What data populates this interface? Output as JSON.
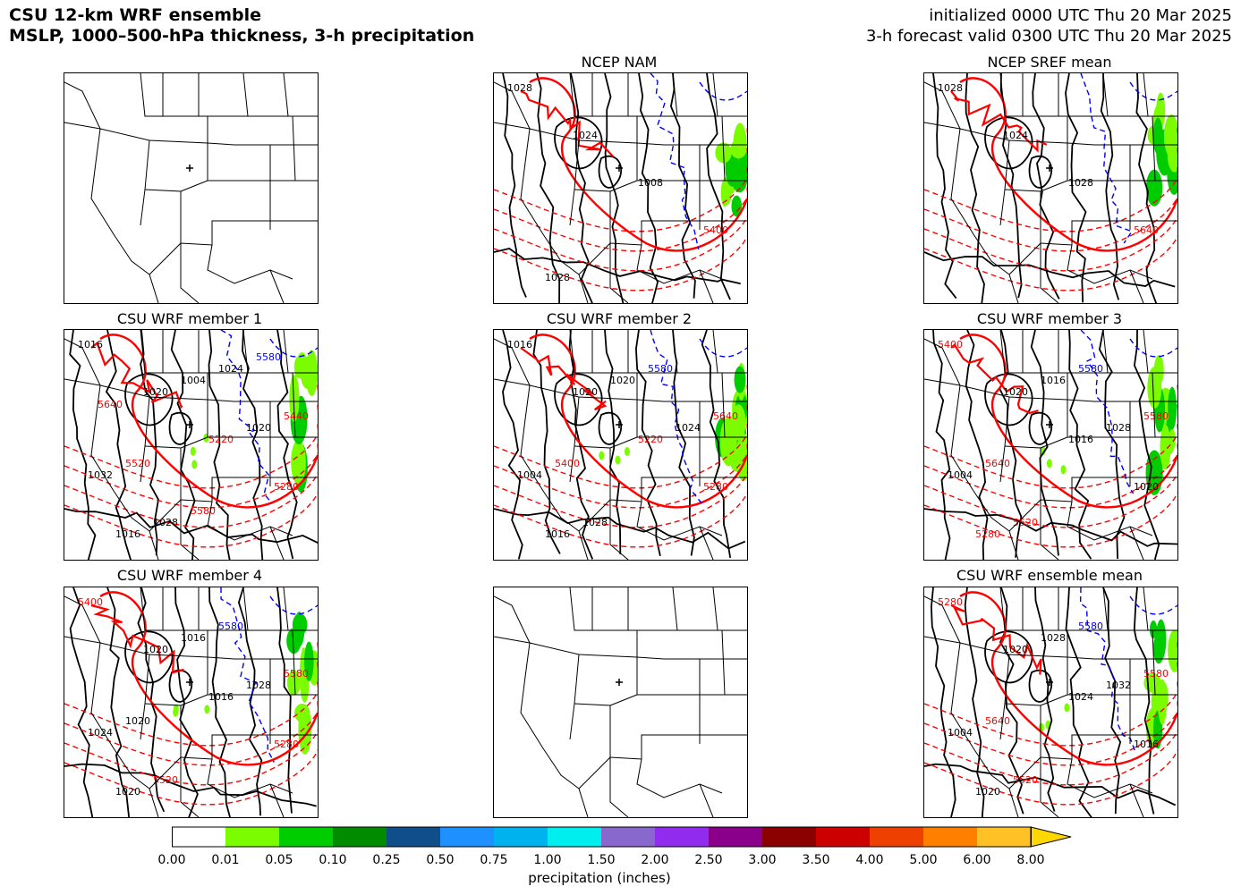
{
  "header": {
    "title_line1": "CSU 12-km WRF ensemble",
    "title_line2": "MSLP, 1000–500-hPa thickness, 3-h precipitation",
    "init_line": "initialized 0000 UTC Thu 20 Mar 2025",
    "valid_line": "3-h forecast valid 0300 UTC Thu 20 Mar 2025"
  },
  "panels": [
    {
      "title": "",
      "type": "map-only",
      "labels": []
    },
    {
      "title": "NCEP NAM",
      "type": "forecast",
      "labels": [
        "1028",
        "1024",
        "1008",
        "5400",
        "1028"
      ]
    },
    {
      "title": "NCEP SREF mean",
      "type": "forecast",
      "labels": [
        "1028",
        "1024",
        "1028",
        "5640"
      ]
    },
    {
      "title": "CSU WRF member 1",
      "type": "forecast",
      "labels": [
        "1016",
        "1020",
        "5220",
        "5280",
        "1016",
        "1004",
        "1020",
        "1032",
        "1028",
        "1024",
        "5440",
        "5520",
        "5580",
        "5580",
        "5640"
      ]
    },
    {
      "title": "CSU WRF member 2",
      "type": "forecast",
      "labels": [
        "1016",
        "1020",
        "5220",
        "5280",
        "1016",
        "1020",
        "1024",
        "1004",
        "1028",
        "5580",
        "5640",
        "5400"
      ]
    },
    {
      "title": "CSU WRF member 3",
      "type": "forecast",
      "labels": [
        "5400",
        "1020",
        "1016",
        "1020",
        "5280",
        "1016",
        "1028",
        "1004",
        "5520",
        "5580",
        "5580",
        "5640"
      ]
    },
    {
      "title": "CSU WRF member 4",
      "type": "forecast",
      "labels": [
        "5400",
        "1020",
        "1016",
        "5280",
        "1020",
        "1016",
        "1028",
        "1024",
        "5520",
        "5580",
        "5580",
        "1020"
      ]
    },
    {
      "title": "",
      "type": "map-only",
      "labels": []
    },
    {
      "title": "CSU WRF ensemble mean",
      "type": "forecast",
      "labels": [
        "5280",
        "1020",
        "1024",
        "1016",
        "1020",
        "1028",
        "1032",
        "1004",
        "5520",
        "5580",
        "5580",
        "5640"
      ]
    }
  ],
  "colorbar": {
    "label": "precipitation (inches)",
    "ticks": [
      "0.00",
      "0.01",
      "0.05",
      "0.10",
      "0.25",
      "0.50",
      "0.75",
      "1.00",
      "1.50",
      "2.00",
      "2.50",
      "3.00",
      "3.50",
      "4.00",
      "5.00",
      "6.00",
      "8.00"
    ],
    "colors": [
      "#ffffff",
      "#7cfc00",
      "#00cd00",
      "#008b00",
      "#104e8b",
      "#1e90ff",
      "#00b2ee",
      "#00eeee",
      "#8968cd",
      "#912cee",
      "#8b008b",
      "#8b0000",
      "#cd0000",
      "#ee4000",
      "#ff7f00",
      "#ffc125"
    ],
    "extend_color": "#ffd700"
  },
  "colors": {
    "isobar": "#000000",
    "thickness_warm": "#ff0000",
    "thickness_cold": "#0000ff",
    "precip_light": "#7cfc00",
    "precip_mod": "#00cd00"
  }
}
